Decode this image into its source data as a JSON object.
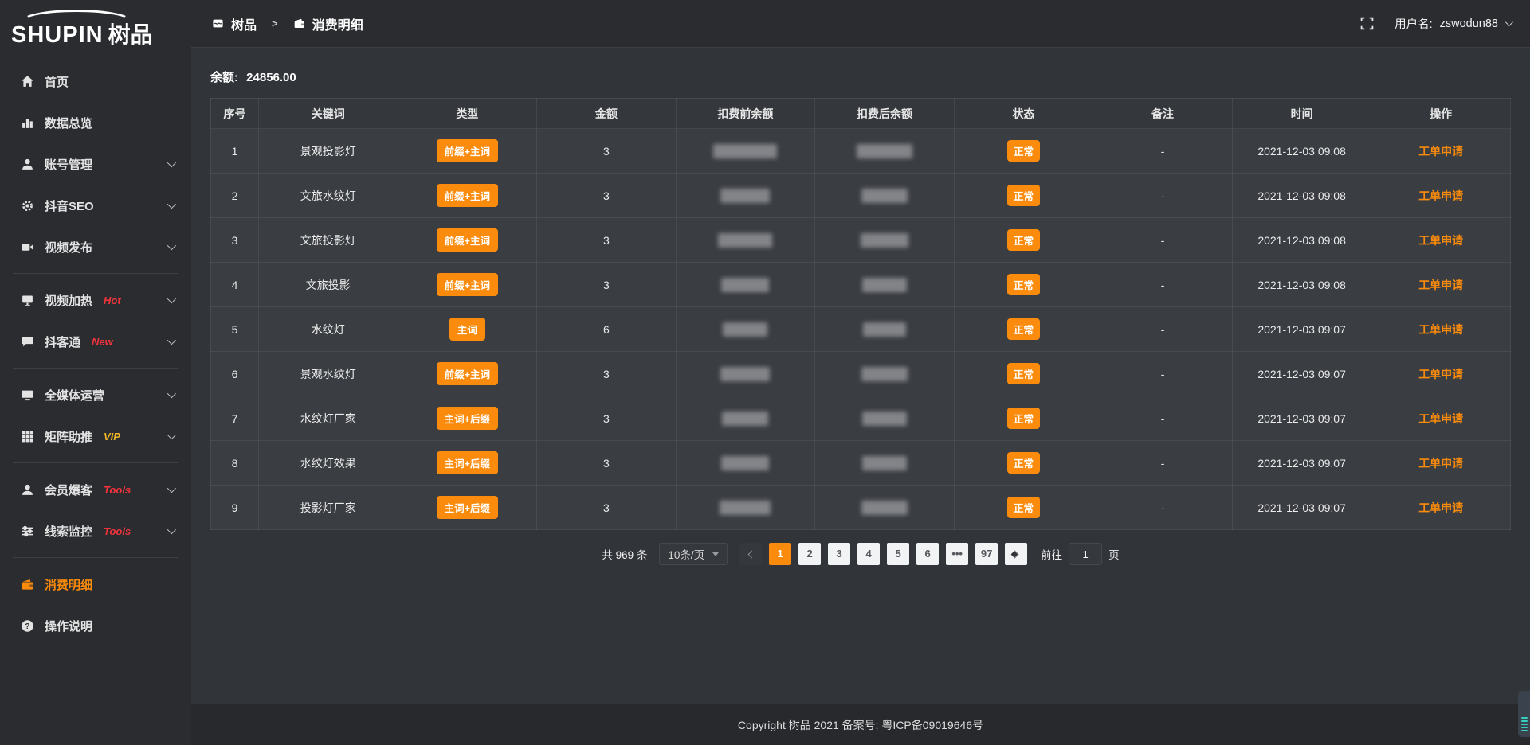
{
  "colors": {
    "accent": "#fb8b0c",
    "red": "#f4333c",
    "gold": "#f0b429",
    "teal": "#35d0c0"
  },
  "logo": {
    "text_en": "SHUPIN",
    "text_cn": "树品"
  },
  "header": {
    "breadcrumb_home": "树品",
    "breadcrumb_separator": ">",
    "breadcrumb_current": "消费明细",
    "username_label": "用户名:",
    "username_value": "zswodun88"
  },
  "sidebar": {
    "items": [
      {
        "icon": "home-icon",
        "label": "首页"
      },
      {
        "icon": "bar-chart-icon",
        "label": "数据总览"
      },
      {
        "icon": "user-icon",
        "label": "账号管理",
        "chevron": true
      },
      {
        "icon": "gear-icon",
        "label": "抖音SEO",
        "chevron": true
      },
      {
        "icon": "video-upload-icon",
        "label": "视频发布",
        "chevron": true,
        "divider_after": true
      },
      {
        "icon": "video-heat-icon",
        "label": "视频加热",
        "badge": "Hot",
        "badge_color": "red",
        "chevron": true
      },
      {
        "icon": "chat-icon",
        "label": "抖客通",
        "badge": "New",
        "badge_color": "red",
        "chevron": true,
        "divider_after": true
      },
      {
        "icon": "monitor-icon",
        "label": "全媒体运营",
        "chevron": true
      },
      {
        "icon": "grid-icon",
        "label": "矩阵助推",
        "badge": "VIP",
        "badge_color": "gold",
        "chevron": true,
        "divider_after": true
      },
      {
        "icon": "member-icon",
        "label": "会员爆客",
        "badge": "Tools",
        "badge_color": "red",
        "chevron": true
      },
      {
        "icon": "sliders-icon",
        "label": "线索监控",
        "badge": "Tools",
        "badge_color": "red",
        "chevron": true,
        "divider_after": true
      },
      {
        "icon": "wallet-icon",
        "label": "消费明细",
        "active": true
      },
      {
        "icon": "question-icon",
        "label": "操作说明"
      }
    ]
  },
  "main": {
    "balance_label": "余额:",
    "balance_value": "24856.00",
    "table": {
      "columns": [
        "序号",
        "关键词",
        "类型",
        "金额",
        "扣费前余额",
        "扣费后余额",
        "状态",
        "备注",
        "时间",
        "操作"
      ],
      "rows": [
        {
          "index": "1",
          "keyword": "景观投影灯",
          "type": "前缀+主词",
          "amount": "3",
          "status": "正常",
          "remark": "-",
          "time": "2021-12-03 09:08",
          "action": "工单申请"
        },
        {
          "index": "2",
          "keyword": "文旅水纹灯",
          "type": "前缀+主词",
          "amount": "3",
          "status": "正常",
          "remark": "-",
          "time": "2021-12-03 09:08",
          "action": "工单申请"
        },
        {
          "index": "3",
          "keyword": "文旅投影灯",
          "type": "前缀+主词",
          "amount": "3",
          "status": "正常",
          "remark": "-",
          "time": "2021-12-03 09:08",
          "action": "工单申请"
        },
        {
          "index": "4",
          "keyword": "文旅投影",
          "type": "前缀+主词",
          "amount": "3",
          "status": "正常",
          "remark": "-",
          "time": "2021-12-03 09:08",
          "action": "工单申请"
        },
        {
          "index": "5",
          "keyword": "水纹灯",
          "type": "主词",
          "amount": "6",
          "status": "正常",
          "remark": "-",
          "time": "2021-12-03 09:07",
          "action": "工单申请"
        },
        {
          "index": "6",
          "keyword": "景观水纹灯",
          "type": "前缀+主词",
          "amount": "3",
          "status": "正常",
          "remark": "-",
          "time": "2021-12-03 09:07",
          "action": "工单申请"
        },
        {
          "index": "7",
          "keyword": "水纹灯厂家",
          "type": "主词+后缀",
          "amount": "3",
          "status": "正常",
          "remark": "-",
          "time": "2021-12-03 09:07",
          "action": "工单申请"
        },
        {
          "index": "8",
          "keyword": "水纹灯效果",
          "type": "主词+后缀",
          "amount": "3",
          "status": "正常",
          "remark": "-",
          "time": "2021-12-03 09:07",
          "action": "工单申请"
        },
        {
          "index": "9",
          "keyword": "投影灯厂家",
          "type": "主词+后缀",
          "amount": "3",
          "status": "正常",
          "remark": "-",
          "time": "2021-12-03 09:07",
          "action": "工单申请"
        }
      ]
    },
    "pagination": {
      "total_label": "共 969 条",
      "page_size_label": "10条/页",
      "pages": [
        "1",
        "2",
        "3",
        "4",
        "5",
        "6",
        "...",
        "97"
      ],
      "active_page": "1",
      "goto_prefix": "前往",
      "goto_value": "1",
      "goto_suffix": "页"
    }
  },
  "footer": {
    "copyright": "Copyright 树品 2021 备案号: 粤ICP备09019646号"
  }
}
